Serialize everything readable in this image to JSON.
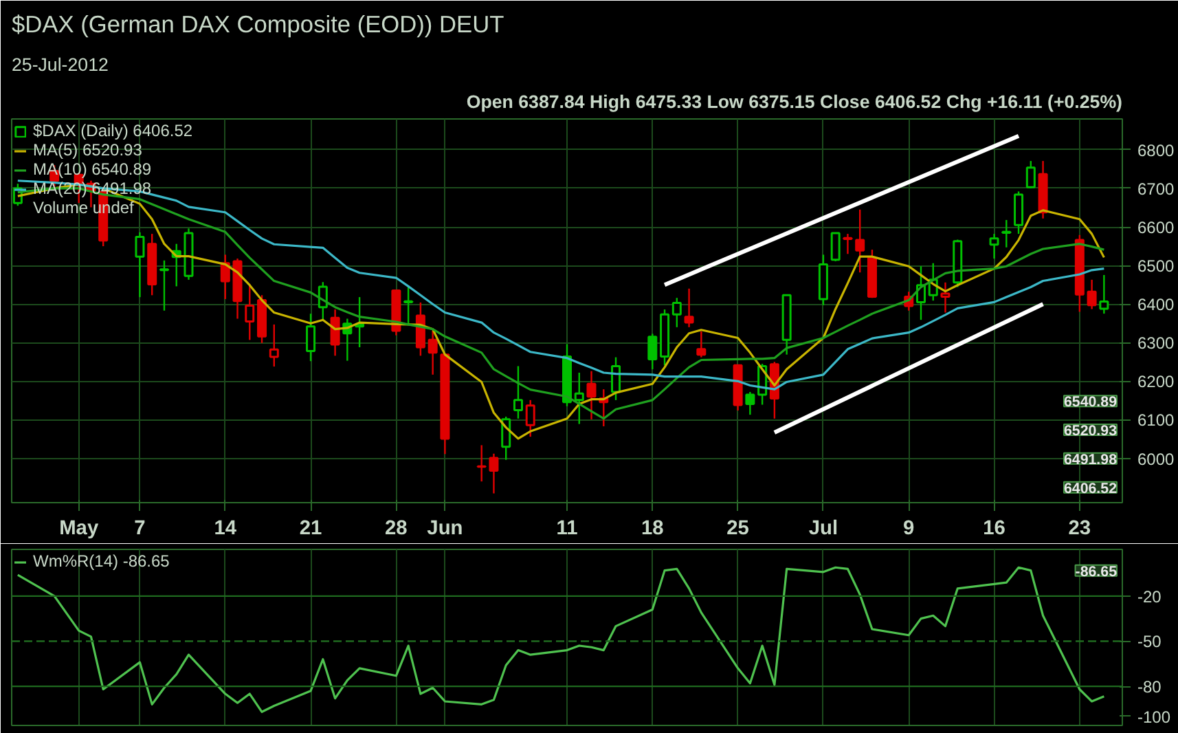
{
  "chart_data": [
    {
      "type": "candlestick",
      "title": "$DAX (German DAX Composite (EOD)) DEUT",
      "subtitle": "25-Jul-2012",
      "annotations": [
        "Open 6387.84 High 6475.33 Low 6375.15 Close 6406.52 Chg +16.11 (+0.25%)",
        "Volume undef",
        "6540.89",
        "6520.93",
        "6491.98",
        "6406.52"
      ],
      "x": [
        "2012-04-27",
        "2012-04-30",
        "2012-05-02",
        "2012-05-03",
        "2012-05-04",
        "2012-05-07",
        "2012-05-08",
        "2012-05-09",
        "2012-05-10",
        "2012-05-11",
        "2012-05-14",
        "2012-05-15",
        "2012-05-16",
        "2012-05-17",
        "2012-05-18",
        "2012-05-21",
        "2012-05-22",
        "2012-05-23",
        "2012-05-24",
        "2012-05-25",
        "2012-05-28",
        "2012-05-29",
        "2012-05-30",
        "2012-05-31",
        "2012-06-01",
        "2012-06-04",
        "2012-06-05",
        "2012-06-06",
        "2012-06-07",
        "2012-06-08",
        "2012-06-11",
        "2012-06-12",
        "2012-06-13",
        "2012-06-14",
        "2012-06-15",
        "2012-06-18",
        "2012-06-19",
        "2012-06-20",
        "2012-06-21",
        "2012-06-22",
        "2012-06-25",
        "2012-06-26",
        "2012-06-27",
        "2012-06-28",
        "2012-06-29",
        "2012-07-02",
        "2012-07-03",
        "2012-07-04",
        "2012-07-05",
        "2012-07-06",
        "2012-07-09",
        "2012-07-10",
        "2012-07-11",
        "2012-07-12",
        "2012-07-13",
        "2012-07-16",
        "2012-07-17",
        "2012-07-18",
        "2012-07-19",
        "2012-07-20",
        "2012-07-23",
        "2012-07-24",
        "2012-07-25"
      ],
      "xticks": [
        {
          "value": "2012-05-02",
          "label": "May"
        },
        {
          "value": "2012-05-07",
          "label": "7"
        },
        {
          "value": "2012-05-14",
          "label": "14"
        },
        {
          "value": "2012-05-21",
          "label": "21"
        },
        {
          "value": "2012-05-28",
          "label": "28"
        },
        {
          "value": "2012-06-01",
          "label": "Jun"
        },
        {
          "value": "2012-06-11",
          "label": "11"
        },
        {
          "value": "2012-06-18",
          "label": "18"
        },
        {
          "value": "2012-06-25",
          "label": "25"
        },
        {
          "value": "2012-07-02",
          "label": "Jul"
        },
        {
          "value": "2012-07-09",
          "label": "9"
        },
        {
          "value": "2012-07-16",
          "label": "16"
        },
        {
          "value": "2012-07-23",
          "label": "23"
        }
      ],
      "xlim": [
        "2012-04-26T12:00",
        "2012-07-26T12:00"
      ],
      "ylim": [
        5885,
        6880
      ],
      "yticks": [
        6000,
        6100,
        6200,
        6300,
        6400,
        6500,
        6600,
        6700,
        6800
      ],
      "grid": true,
      "legend": "top left",
      "series": [
        {
          "type": "line",
          "name": "MA(5) 6520.93",
          "color": "#c8b400",
          "values": [
            6680,
            6700,
            6710,
            6705,
            6700,
            6660,
            6620,
            6556,
            6524,
            6524,
            6503,
            6482,
            6449,
            6410,
            6378,
            6350,
            6359,
            6335,
            6338,
            6352,
            6348,
            6347,
            6346,
            6335,
            6269,
            6198,
            6118,
            6080,
            6051,
            6070,
            6103,
            6141,
            6153,
            6153,
            6170,
            6193,
            6236,
            6288,
            6324,
            6333,
            6312,
            6274,
            6231,
            6189,
            6231,
            6312,
            6387,
            6454,
            6523,
            6523,
            6498,
            6475,
            6452,
            6433,
            6449,
            6492,
            6522,
            6566,
            6629,
            6643,
            6620,
            6582,
            6520.93
          ]
        },
        {
          "type": "line",
          "name": "MA(10) 6540.89",
          "color": "#1fa01f",
          "values": [
            6690,
            6700,
            6700,
            6692,
            6684,
            6672,
            6659,
            6646,
            6633,
            6620,
            6587,
            6553,
            6520,
            6490,
            6460,
            6430,
            6411,
            6392,
            6379,
            6367,
            6354,
            6347,
            6341,
            6335,
            6316,
            6274,
            6231,
            6213,
            6195,
            6178,
            6160,
            6141,
            6122,
            6103,
            6127,
            6151,
            6179,
            6208,
            6236,
            6255,
            6257,
            6258,
            6258,
            6260,
            6286,
            6312,
            6328,
            6344,
            6359,
            6375,
            6410,
            6444,
            6462,
            6480,
            6486,
            6492,
            6498,
            6514,
            6530,
            6543,
            6556,
            6549,
            6540.89
          ]
        },
        {
          "type": "line",
          "name": "MA(20) 6491.98",
          "color": "#3cb8c8",
          "values": [
            6720,
            6715,
            6710,
            6705,
            6700,
            6692,
            6684,
            6676,
            6668,
            6652,
            6638,
            6615,
            6592,
            6570,
            6555,
            6548,
            6546,
            6520,
            6494,
            6481,
            6468,
            6446,
            6423,
            6400,
            6378,
            6352,
            6326,
            6310,
            6293,
            6276,
            6260,
            6247,
            6235,
            6222,
            6219,
            6217,
            6212,
            6212,
            6212,
            6212,
            6200,
            6189,
            6184,
            6179,
            6198,
            6217,
            6250,
            6283,
            6297,
            6311,
            6326,
            6340,
            6356,
            6372,
            6389,
            6405,
            6418,
            6431,
            6444,
            6460,
            6477,
            6488,
            6491.98
          ]
        },
        {
          "type": "line",
          "color": "#ffffff",
          "x": [
            "2012-06-19",
            "2012-07-18"
          ],
          "values": [
            6450,
            6836
          ]
        },
        {
          "type": "line",
          "color": "#ffffff",
          "x": [
            "2012-06-28",
            "2012-07-20"
          ],
          "values": [
            6067,
            6400
          ]
        },
        {
          "type": "candlestick",
          "name": "$DAX (Daily) 6406.52",
          "colors": [
            "#00c000",
            "#e00000",
            "#e00000",
            "#e00000",
            "#e00000",
            "#00c000",
            "#e00000",
            "#00c000",
            "#00c000",
            "#00c000",
            "#e00000",
            "#e00000",
            "#e00000",
            "#e00000",
            "#e00000",
            "#00c000",
            "#00c000",
            "#e00000",
            "#00c000",
            "#00c000",
            "#e00000",
            "#00c000",
            "#e00000",
            "#e00000",
            "#e00000",
            "#e00000",
            "#e00000",
            "#00c000",
            "#00c000",
            "#e00000",
            "#00c000",
            "#00c000",
            "#e00000",
            "#e00000",
            "#00c000",
            "#00c000",
            "#00c000",
            "#00c000",
            "#e00000",
            "#e00000",
            "#e00000",
            "#00c000",
            "#00c000",
            "#e00000",
            "#00c000",
            "#00c000",
            "#00c000",
            "#e00000",
            "#e00000",
            "#e00000",
            "#e00000",
            "#00c000",
            "#00c000",
            "#e00000",
            "#00c000",
            "#00c000",
            "#00c000",
            "#00c000",
            "#00c000",
            "#e00000",
            "#e00000",
            "#e00000",
            "#00c000"
          ],
          "ohlc": [
            [
              6662,
              6712,
              6655,
              6700
            ],
            [
              6745,
              6760,
              6705,
              6720
            ],
            [
              6735,
              6740,
              6662,
              6710
            ],
            [
              6712,
              6720,
              6651,
              6694
            ],
            [
              6690,
              6700,
              6550,
              6565
            ],
            [
              6523,
              6586,
              6418,
              6574
            ],
            [
              6556,
              6582,
              6423,
              6451
            ],
            [
              6490,
              6513,
              6383,
              6488
            ],
            [
              6537,
              6556,
              6446,
              6522
            ],
            [
              6473,
              6596,
              6463,
              6584
            ],
            [
              6506,
              6528,
              6413,
              6459
            ],
            [
              6511,
              6518,
              6362,
              6408
            ],
            [
              6355,
              6452,
              6307,
              6396
            ],
            [
              6410,
              6423,
              6299,
              6316
            ],
            [
              6263,
              6347,
              6238,
              6282
            ],
            [
              6278,
              6375,
              6252,
              6342
            ],
            [
              6392,
              6457,
              6361,
              6445
            ],
            [
              6364,
              6386,
              6266,
              6295
            ],
            [
              6349,
              6362,
              6253,
              6324
            ],
            [
              6348,
              6418,
              6288,
              6342
            ],
            [
              6435,
              6435,
              6319,
              6331
            ],
            [
              6407,
              6447,
              6348,
              6405
            ],
            [
              6370,
              6404,
              6266,
              6288
            ],
            [
              6307,
              6331,
              6217,
              6274
            ],
            [
              6269,
              6269,
              6011,
              6051
            ],
            [
              5979,
              6034,
              5940,
              5978
            ],
            [
              6001,
              6012,
              5909,
              5968
            ],
            [
              6030,
              6108,
              5996,
              6101
            ],
            [
              6125,
              6239,
              6103,
              6151
            ],
            [
              6086,
              6151,
              6056,
              6137
            ],
            [
              6264,
              6296,
              6135,
              6146
            ],
            [
              6151,
              6222,
              6089,
              6168
            ],
            [
              6193,
              6226,
              6101,
              6160
            ],
            [
              6155,
              6179,
              6083,
              6146
            ],
            [
              6172,
              6262,
              6151,
              6239
            ],
            [
              6315,
              6323,
              6231,
              6257
            ],
            [
              6264,
              6386,
              6241,
              6373
            ],
            [
              6373,
              6416,
              6340,
              6403
            ],
            [
              6367,
              6440,
              6340,
              6352
            ],
            [
              6283,
              6329,
              6262,
              6269
            ],
            [
              6241,
              6241,
              6124,
              6138
            ],
            [
              6165,
              6172,
              6113,
              6141
            ],
            [
              6165,
              6245,
              6139,
              6239
            ],
            [
              6244,
              6250,
              6103,
              6155
            ],
            [
              6307,
              6423,
              6269,
              6423
            ],
            [
              6413,
              6528,
              6397,
              6503
            ],
            [
              6515,
              6584,
              6511,
              6584
            ],
            [
              6571,
              6582,
              6530,
              6569
            ],
            [
              6566,
              6645,
              6482,
              6539
            ],
            [
              6520,
              6541,
              6416,
              6419
            ],
            [
              6419,
              6432,
              6383,
              6395
            ],
            [
              6405,
              6498,
              6359,
              6449
            ],
            [
              6423,
              6506,
              6409,
              6463
            ],
            [
              6419,
              6456,
              6378,
              6427
            ],
            [
              6456,
              6567,
              6444,
              6563
            ],
            [
              6554,
              6582,
              6518,
              6570
            ],
            [
              6585,
              6618,
              6547,
              6587
            ],
            [
              6605,
              6692,
              6582,
              6684
            ],
            [
              6703,
              6771,
              6700,
              6754
            ],
            [
              6737,
              6771,
              6622,
              6638
            ],
            [
              6566,
              6579,
              6380,
              6425
            ],
            [
              6432,
              6463,
              6387,
              6397
            ],
            [
              6387.84,
              6475.33,
              6375.15,
              6406.52
            ]
          ]
        }
      ]
    },
    {
      "type": "line",
      "x": [
        "2012-04-27",
        "2012-04-30",
        "2012-05-02",
        "2012-05-03",
        "2012-05-04",
        "2012-05-07",
        "2012-05-08",
        "2012-05-09",
        "2012-05-10",
        "2012-05-11",
        "2012-05-14",
        "2012-05-15",
        "2012-05-16",
        "2012-05-17",
        "2012-05-18",
        "2012-05-21",
        "2012-05-22",
        "2012-05-23",
        "2012-05-24",
        "2012-05-25",
        "2012-05-28",
        "2012-05-29",
        "2012-05-30",
        "2012-05-31",
        "2012-06-01",
        "2012-06-04",
        "2012-06-05",
        "2012-06-06",
        "2012-06-07",
        "2012-06-08",
        "2012-06-11",
        "2012-06-12",
        "2012-06-13",
        "2012-06-14",
        "2012-06-15",
        "2012-06-18",
        "2012-06-19",
        "2012-06-20",
        "2012-06-21",
        "2012-06-22",
        "2012-06-25",
        "2012-06-26",
        "2012-06-27",
        "2012-06-28",
        "2012-06-29",
        "2012-07-02",
        "2012-07-03",
        "2012-07-04",
        "2012-07-05",
        "2012-07-06",
        "2012-07-09",
        "2012-07-10",
        "2012-07-11",
        "2012-07-12",
        "2012-07-13",
        "2012-07-16",
        "2012-07-17",
        "2012-07-18",
        "2012-07-19",
        "2012-07-20",
        "2012-07-23",
        "2012-07-24",
        "2012-07-25"
      ],
      "xticks": [
        {
          "value": "2012-05-02",
          "label": null
        },
        {
          "value": "2012-05-07",
          "label": null
        },
        {
          "value": "2012-05-14",
          "label": null
        },
        {
          "value": "2012-05-21",
          "label": null
        },
        {
          "value": "2012-05-28",
          "label": null
        },
        {
          "value": "2012-06-01",
          "label": null
        },
        {
          "value": "2012-06-11",
          "label": null
        },
        {
          "value": "2012-06-18",
          "label": null
        },
        {
          "value": "2012-06-25",
          "label": null
        },
        {
          "value": "2012-07-02",
          "label": null
        },
        {
          "value": "2012-07-09",
          "label": null
        },
        {
          "value": "2012-07-16",
          "label": null
        },
        {
          "value": "2012-07-23",
          "label": null
        }
      ],
      "tick_labels": "y",
      "xlim": [
        "2012-04-26T12:00",
        "2012-07-26T12:00"
      ],
      "ylim": [
        -106,
        11
      ],
      "yticks": [
        -20,
        -50,
        -80,
        -100
      ],
      "grid": "x",
      "legend": "top left",
      "ref_lines": [
        {
          "axis": "y",
          "value": -20,
          "color": "#1f6a1f",
          "line_style": "solid"
        },
        {
          "axis": "y",
          "value": -50,
          "color": "#1f6a1f",
          "line_style": "dashed"
        },
        {
          "axis": "y",
          "value": -80,
          "color": "#1f6a1f",
          "line_style": "solid"
        }
      ],
      "annotations": [
        "-86.65"
      ],
      "series": [
        {
          "name": "Wm%R(14) -86.65",
          "color": "#4fc24f",
          "values": [
            -6,
            -20,
            -43,
            -47,
            -82,
            -64,
            -92,
            -81,
            -72,
            -59,
            -85,
            -91,
            -85,
            -97,
            -93,
            -83,
            -62,
            -88,
            -76,
            -68,
            -73,
            -53,
            -85,
            -81,
            -90,
            -92,
            -89,
            -66,
            -56,
            -59,
            -56,
            -53,
            -54,
            -56,
            -40,
            -29,
            -3,
            -2,
            -15,
            -31,
            -68,
            -78,
            -53,
            -79,
            -2,
            -4,
            -1,
            -2,
            -19,
            -42,
            -46,
            -35,
            -33,
            -40,
            -15,
            -12,
            -11,
            -1,
            -3,
            -33,
            -82,
            -90,
            -86.65
          ]
        }
      ]
    }
  ]
}
